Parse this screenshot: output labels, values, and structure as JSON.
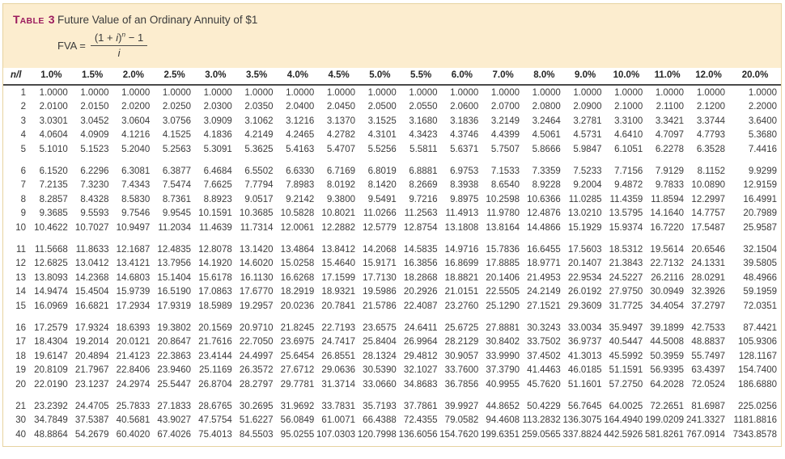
{
  "header": {
    "label_parts": {
      "word_initial": "T",
      "word_rest": "ABLE",
      "number": "3"
    },
    "title": "Future Value of an Ordinary Annuity of $1",
    "formula": {
      "lhs": "FVA =",
      "num_open": "(1 + ",
      "num_i": "i",
      "num_close": ")",
      "exponent": "n",
      "num_tail": " − 1",
      "denominator": "i"
    }
  },
  "colors": {
    "band_background": "#fcedcf",
    "frame_border": "#e7d3a0",
    "label_maroon": "#9b1b5e",
    "header_rule": "#4a4a4a",
    "text": "#3b3b3b"
  },
  "chart_data": {
    "type": "table",
    "title": "Future Value of an Ordinary Annuity of $1",
    "columns": [
      "n/l",
      "1.0%",
      "1.5%",
      "2.0%",
      "2.5%",
      "3.0%",
      "3.5%",
      "4.0%",
      "4.5%",
      "5.0%",
      "5.5%",
      "6.0%",
      "7.0%",
      "8.0%",
      "9.0%",
      "10.0%",
      "11.0%",
      "12.0%",
      "20.0%"
    ]
  },
  "table": {
    "col_headers": [
      "n/l",
      "1.0%",
      "1.5%",
      "2.0%",
      "2.5%",
      "3.0%",
      "3.5%",
      "4.0%",
      "4.5%",
      "5.0%",
      "5.5%",
      "6.0%",
      "7.0%",
      "8.0%",
      "9.0%",
      "10.0%",
      "11.0%",
      "12.0%",
      "20.0%"
    ],
    "group_breaks": [
      5,
      10,
      15,
      20
    ],
    "rows": [
      {
        "n": "1",
        "values": [
          "1.0000",
          "1.0000",
          "1.0000",
          "1.0000",
          "1.0000",
          "1.0000",
          "1.0000",
          "1.0000",
          "1.0000",
          "1.0000",
          "1.0000",
          "1.0000",
          "1.0000",
          "1.0000",
          "1.0000",
          "1.0000",
          "1.0000",
          "1.0000"
        ]
      },
      {
        "n": "2",
        "values": [
          "2.0100",
          "2.0150",
          "2.0200",
          "2.0250",
          "2.0300",
          "2.0350",
          "2.0400",
          "2.0450",
          "2.0500",
          "2.0550",
          "2.0600",
          "2.0700",
          "2.0800",
          "2.0900",
          "2.1000",
          "2.1100",
          "2.1200",
          "2.2000"
        ]
      },
      {
        "n": "3",
        "values": [
          "3.0301",
          "3.0452",
          "3.0604",
          "3.0756",
          "3.0909",
          "3.1062",
          "3.1216",
          "3.1370",
          "3.1525",
          "3.1680",
          "3.1836",
          "3.2149",
          "3.2464",
          "3.2781",
          "3.3100",
          "3.3421",
          "3.3744",
          "3.6400"
        ]
      },
      {
        "n": "4",
        "values": [
          "4.0604",
          "4.0909",
          "4.1216",
          "4.1525",
          "4.1836",
          "4.2149",
          "4.2465",
          "4.2782",
          "4.3101",
          "4.3423",
          "4.3746",
          "4.4399",
          "4.5061",
          "4.5731",
          "4.6410",
          "4.7097",
          "4.7793",
          "5.3680"
        ]
      },
      {
        "n": "5",
        "values": [
          "5.1010",
          "5.1523",
          "5.2040",
          "5.2563",
          "5.3091",
          "5.3625",
          "5.4163",
          "5.4707",
          "5.5256",
          "5.5811",
          "5.6371",
          "5.7507",
          "5.8666",
          "5.9847",
          "6.1051",
          "6.2278",
          "6.3528",
          "7.4416"
        ]
      },
      {
        "n": "6",
        "values": [
          "6.1520",
          "6.2296",
          "6.3081",
          "6.3877",
          "6.4684",
          "6.5502",
          "6.6330",
          "6.7169",
          "6.8019",
          "6.8881",
          "6.9753",
          "7.1533",
          "7.3359",
          "7.5233",
          "7.7156",
          "7.9129",
          "8.1152",
          "9.9299"
        ]
      },
      {
        "n": "7",
        "values": [
          "7.2135",
          "7.3230",
          "7.4343",
          "7.5474",
          "7.6625",
          "7.7794",
          "7.8983",
          "8.0192",
          "8.1420",
          "8.2669",
          "8.3938",
          "8.6540",
          "8.9228",
          "9.2004",
          "9.4872",
          "9.7833",
          "10.0890",
          "12.9159"
        ]
      },
      {
        "n": "8",
        "values": [
          "8.2857",
          "8.4328",
          "8.5830",
          "8.7361",
          "8.8923",
          "9.0517",
          "9.2142",
          "9.3800",
          "9.5491",
          "9.7216",
          "9.8975",
          "10.2598",
          "10.6366",
          "11.0285",
          "11.4359",
          "11.8594",
          "12.2997",
          "16.4991"
        ]
      },
      {
        "n": "9",
        "values": [
          "9.3685",
          "9.5593",
          "9.7546",
          "9.9545",
          "10.1591",
          "10.3685",
          "10.5828",
          "10.8021",
          "11.0266",
          "11.2563",
          "11.4913",
          "11.9780",
          "12.4876",
          "13.0210",
          "13.5795",
          "14.1640",
          "14.7757",
          "20.7989"
        ]
      },
      {
        "n": "10",
        "values": [
          "10.4622",
          "10.7027",
          "10.9497",
          "11.2034",
          "11.4639",
          "11.7314",
          "12.0061",
          "12.2882",
          "12.5779",
          "12.8754",
          "13.1808",
          "13.8164",
          "14.4866",
          "15.1929",
          "15.9374",
          "16.7220",
          "17.5487",
          "25.9587"
        ]
      },
      {
        "n": "11",
        "values": [
          "11.5668",
          "11.8633",
          "12.1687",
          "12.4835",
          "12.8078",
          "13.1420",
          "13.4864",
          "13.8412",
          "14.2068",
          "14.5835",
          "14.9716",
          "15.7836",
          "16.6455",
          "17.5603",
          "18.5312",
          "19.5614",
          "20.6546",
          "32.1504"
        ]
      },
      {
        "n": "12",
        "values": [
          "12.6825",
          "13.0412",
          "13.4121",
          "13.7956",
          "14.1920",
          "14.6020",
          "15.0258",
          "15.4640",
          "15.9171",
          "16.3856",
          "16.8699",
          "17.8885",
          "18.9771",
          "20.1407",
          "21.3843",
          "22.7132",
          "24.1331",
          "39.5805"
        ]
      },
      {
        "n": "13",
        "values": [
          "13.8093",
          "14.2368",
          "14.6803",
          "15.1404",
          "15.6178",
          "16.1130",
          "16.6268",
          "17.1599",
          "17.7130",
          "18.2868",
          "18.8821",
          "20.1406",
          "21.4953",
          "22.9534",
          "24.5227",
          "26.2116",
          "28.0291",
          "48.4966"
        ]
      },
      {
        "n": "14",
        "values": [
          "14.9474",
          "15.4504",
          "15.9739",
          "16.5190",
          "17.0863",
          "17.6770",
          "18.2919",
          "18.9321",
          "19.5986",
          "20.2926",
          "21.0151",
          "22.5505",
          "24.2149",
          "26.0192",
          "27.9750",
          "30.0949",
          "32.3926",
          "59.1959"
        ]
      },
      {
        "n": "15",
        "values": [
          "16.0969",
          "16.6821",
          "17.2934",
          "17.9319",
          "18.5989",
          "19.2957",
          "20.0236",
          "20.7841",
          "21.5786",
          "22.4087",
          "23.2760",
          "25.1290",
          "27.1521",
          "29.3609",
          "31.7725",
          "34.4054",
          "37.2797",
          "72.0351"
        ]
      },
      {
        "n": "16",
        "values": [
          "17.2579",
          "17.9324",
          "18.6393",
          "19.3802",
          "20.1569",
          "20.9710",
          "21.8245",
          "22.7193",
          "23.6575",
          "24.6411",
          "25.6725",
          "27.8881",
          "30.3243",
          "33.0034",
          "35.9497",
          "39.1899",
          "42.7533",
          "87.4421"
        ]
      },
      {
        "n": "17",
        "values": [
          "18.4304",
          "19.2014",
          "20.0121",
          "20.8647",
          "21.7616",
          "22.7050",
          "23.6975",
          "24.7417",
          "25.8404",
          "26.9964",
          "28.2129",
          "30.8402",
          "33.7502",
          "36.9737",
          "40.5447",
          "44.5008",
          "48.8837",
          "105.9306"
        ]
      },
      {
        "n": "18",
        "values": [
          "19.6147",
          "20.4894",
          "21.4123",
          "22.3863",
          "23.4144",
          "24.4997",
          "25.6454",
          "26.8551",
          "28.1324",
          "29.4812",
          "30.9057",
          "33.9990",
          "37.4502",
          "41.3013",
          "45.5992",
          "50.3959",
          "55.7497",
          "128.1167"
        ]
      },
      {
        "n": "19",
        "values": [
          "20.8109",
          "21.7967",
          "22.8406",
          "23.9460",
          "25.1169",
          "26.3572",
          "27.6712",
          "29.0636",
          "30.5390",
          "32.1027",
          "33.7600",
          "37.3790",
          "41.4463",
          "46.0185",
          "51.1591",
          "56.9395",
          "63.4397",
          "154.7400"
        ]
      },
      {
        "n": "20",
        "values": [
          "22.0190",
          "23.1237",
          "24.2974",
          "25.5447",
          "26.8704",
          "28.2797",
          "29.7781",
          "31.3714",
          "33.0660",
          "34.8683",
          "36.7856",
          "40.9955",
          "45.7620",
          "51.1601",
          "57.2750",
          "64.2028",
          "72.0524",
          "186.6880"
        ]
      },
      {
        "n": "21",
        "values": [
          "23.2392",
          "24.4705",
          "25.7833",
          "27.1833",
          "28.6765",
          "30.2695",
          "31.9692",
          "33.7831",
          "35.7193",
          "37.7861",
          "39.9927",
          "44.8652",
          "50.4229",
          "56.7645",
          "64.0025",
          "72.2651",
          "81.6987",
          "225.0256"
        ]
      },
      {
        "n": "30",
        "values": [
          "34.7849",
          "37.5387",
          "40.5681",
          "43.9027",
          "47.5754",
          "51.6227",
          "56.0849",
          "61.0071",
          "66.4388",
          "72.4355",
          "79.0582",
          "94.4608",
          "113.2832",
          "136.3075",
          "164.4940",
          "199.0209",
          "241.3327",
          "1181.8816"
        ]
      },
      {
        "n": "40",
        "values": [
          "48.8864",
          "54.2679",
          "60.4020",
          "67.4026",
          "75.4013",
          "84.5503",
          "95.0255",
          "107.0303",
          "120.7998",
          "136.6056",
          "154.7620",
          "199.6351",
          "259.0565",
          "337.8824",
          "442.5926",
          "581.8261",
          "767.0914",
          "7343.8578"
        ]
      }
    ]
  }
}
